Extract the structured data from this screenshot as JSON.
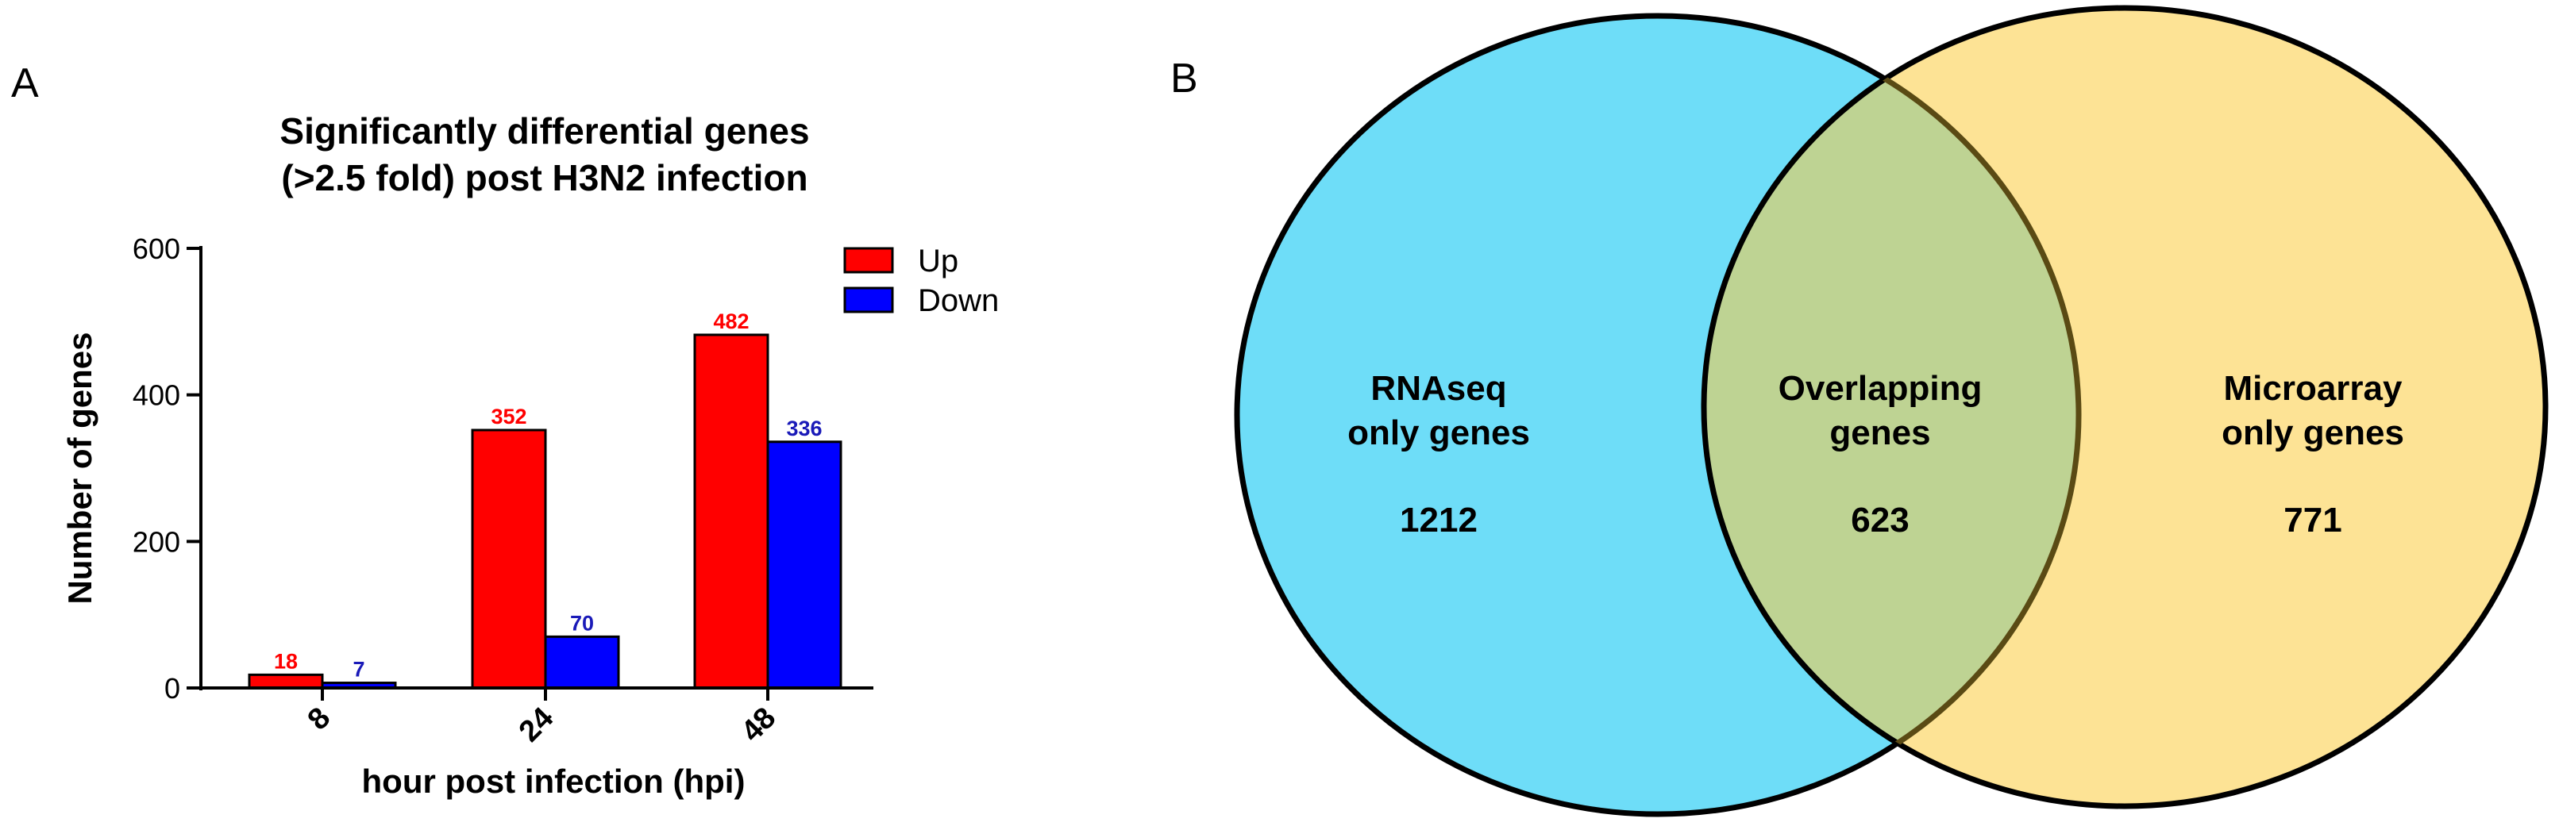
{
  "panels": {
    "a": "A",
    "b": "B"
  },
  "chart_data": [
    {
      "type": "bar",
      "title": [
        "Significantly differential genes",
        "(>2.5 fold) post H3N2 infection"
      ],
      "xlabel": "hour post infection (hpi)",
      "ylabel": "Number of genes",
      "categories": [
        "8",
        "24",
        "48"
      ],
      "ylim": [
        0,
        600
      ],
      "yticks": [
        "0",
        "200",
        "400",
        "600"
      ],
      "legend_position": "top-right",
      "grid": false,
      "series": [
        {
          "name": "Up",
          "color": "#FF0000",
          "label_color": "#FF0000",
          "values": [
            18,
            352,
            482
          ]
        },
        {
          "name": "Down",
          "color": "#0000FF",
          "label_color": "#1A1AB8",
          "values": [
            7,
            70,
            336
          ]
        }
      ]
    },
    {
      "type": "venn",
      "sets": [
        {
          "label": [
            "RNAseq",
            "only genes"
          ],
          "count": "1212",
          "color": "#6EDDF8"
        },
        {
          "label": [
            "Overlapping",
            "genes"
          ],
          "count": "623",
          "color": "#BED393"
        },
        {
          "label": [
            "Microarray",
            "only genes"
          ],
          "count": "771",
          "color": "#FDE395"
        }
      ]
    }
  ]
}
